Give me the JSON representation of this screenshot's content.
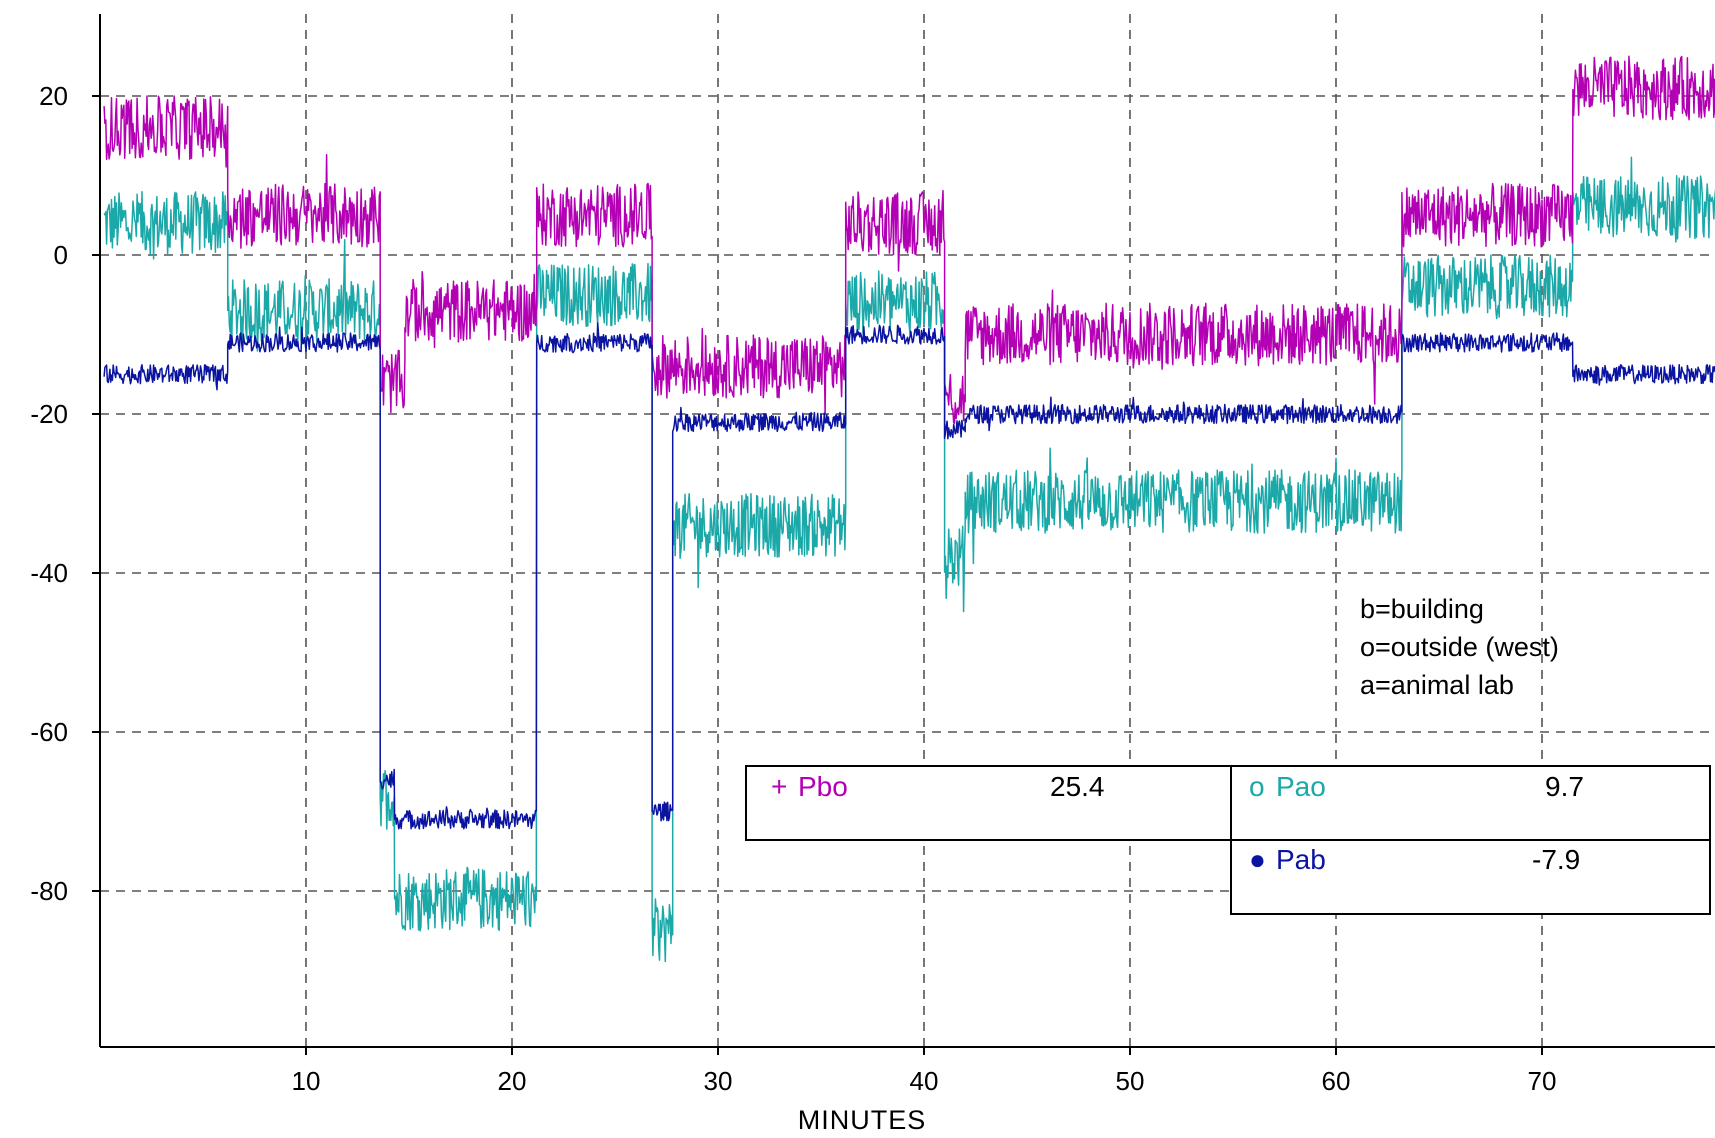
{
  "chart_data": {
    "type": "line",
    "title": "",
    "xlabel": "MINUTES",
    "ylabel": "",
    "xlim": [
      0,
      79
    ],
    "ylim": [
      -100,
      30
    ],
    "xticks": [
      10,
      20,
      30,
      40,
      50,
      60,
      70
    ],
    "yticks": [
      20,
      0,
      -20,
      -40,
      -60,
      -80
    ],
    "grid": true,
    "colors": {
      "Pbo": "#b400b4",
      "Pao": "#1aa8a8",
      "Pab": "#0a14a0",
      "grid": "#555555"
    },
    "notes": [
      "b=building",
      "o=outside (west)",
      "a=animal lab"
    ],
    "legend": [
      {
        "marker": "+",
        "name": "Pbo",
        "value": "25.4"
      },
      {
        "marker": "o",
        "name": "Pao",
        "value": "9.7"
      },
      {
        "marker": "●",
        "name": "Pab",
        "value": "-7.9"
      }
    ],
    "series": [
      {
        "name": "Pbo",
        "noise": 4,
        "segments": [
          {
            "x": [
              0.2,
              6.2
            ],
            "y": 16
          },
          {
            "x": [
              6.2,
              13.6
            ],
            "y": 5
          },
          {
            "x": [
              13.6,
              14.8
            ],
            "y": -16
          },
          {
            "x": [
              14.8,
              21.2
            ],
            "y": -7
          },
          {
            "x": [
              21.2,
              26.8
            ],
            "y": 5
          },
          {
            "x": [
              26.8,
              27.8
            ],
            "y": -14
          },
          {
            "x": [
              27.8,
              36.2
            ],
            "y": -14
          },
          {
            "x": [
              36.2,
              41
            ],
            "y": 4
          },
          {
            "x": [
              41,
              42
            ],
            "y": -18
          },
          {
            "x": [
              42,
              63.2
            ],
            "y": -10
          },
          {
            "x": [
              63.2,
              71.5
            ],
            "y": 5
          },
          {
            "x": [
              71.5,
              79
            ],
            "y": 21
          }
        ]
      },
      {
        "name": "Pao",
        "noise": 4,
        "segments": [
          {
            "x": [
              0.2,
              6.2
            ],
            "y": 4
          },
          {
            "x": [
              6.2,
              13.6
            ],
            "y": -7
          },
          {
            "x": [
              13.6,
              14.3
            ],
            "y": -68
          },
          {
            "x": [
              14.3,
              21.2
            ],
            "y": -81
          },
          {
            "x": [
              21.2,
              26.8
            ],
            "y": -5
          },
          {
            "x": [
              26.8,
              27.8
            ],
            "y": -85
          },
          {
            "x": [
              27.8,
              36.2
            ],
            "y": -34
          },
          {
            "x": [
              36.2,
              41
            ],
            "y": -6
          },
          {
            "x": [
              41,
              42
            ],
            "y": -38
          },
          {
            "x": [
              42,
              63.2
            ],
            "y": -31
          },
          {
            "x": [
              63.2,
              71.5
            ],
            "y": -4
          },
          {
            "x": [
              71.5,
              79
            ],
            "y": 6
          }
        ]
      },
      {
        "name": "Pab",
        "noise": 1.2,
        "segments": [
          {
            "x": [
              0.2,
              6.2
            ],
            "y": -15
          },
          {
            "x": [
              6.2,
              13.6
            ],
            "y": -11
          },
          {
            "x": [
              13.6,
              14.3
            ],
            "y": -66
          },
          {
            "x": [
              14.3,
              21.2
            ],
            "y": -71
          },
          {
            "x": [
              21.2,
              26.8
            ],
            "y": -11
          },
          {
            "x": [
              26.8,
              27.8
            ],
            "y": -70
          },
          {
            "x": [
              27.8,
              36.2
            ],
            "y": -21
          },
          {
            "x": [
              36.2,
              41
            ],
            "y": -10
          },
          {
            "x": [
              41,
              42
            ],
            "y": -22
          },
          {
            "x": [
              42,
              63.2
            ],
            "y": -20
          },
          {
            "x": [
              63.2,
              71.5
            ],
            "y": -11
          },
          {
            "x": [
              71.5,
              79
            ],
            "y": -15
          }
        ]
      }
    ]
  }
}
